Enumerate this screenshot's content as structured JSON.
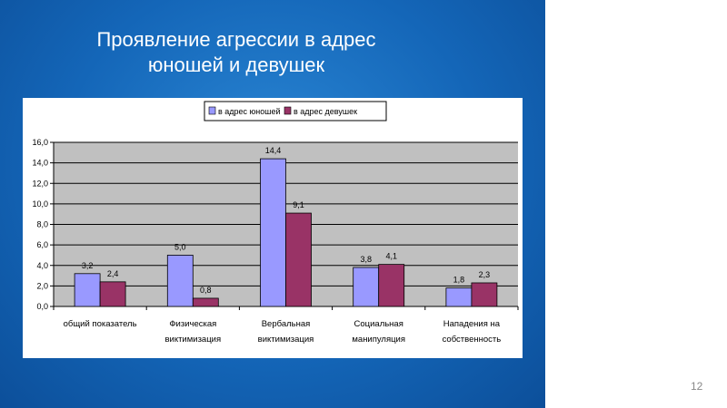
{
  "slide": {
    "title_line1": "Проявление агрессии в адрес",
    "title_line2": "юношей и девушек",
    "page_number": "12"
  },
  "chart_data": {
    "type": "bar",
    "categories": [
      [
        "общий показатель"
      ],
      [
        "Физическая",
        "виктимизация"
      ],
      [
        "Вербальная",
        "виктимизация"
      ],
      [
        "Социальная",
        "манипуляция"
      ],
      [
        "Нападения на",
        "собственность"
      ]
    ],
    "series": [
      {
        "name": "в адрес юношей",
        "color": "#9999ff",
        "values": [
          3.2,
          5.0,
          14.4,
          3.8,
          1.8
        ],
        "labels": [
          "3,2",
          "5,0",
          "14,4",
          "3,8",
          "1,8"
        ]
      },
      {
        "name": "в адрес девушек",
        "color": "#993366",
        "values": [
          2.4,
          0.8,
          9.1,
          4.1,
          2.3
        ],
        "labels": [
          "2,4",
          "0,8",
          "9,1",
          "4,1",
          "2,3"
        ]
      }
    ],
    "ylim": [
      0,
      16
    ],
    "yticks": [
      "0,0",
      "2,0",
      "4,0",
      "6,0",
      "8,0",
      "10,0",
      "12,0",
      "14,0",
      "16,0"
    ],
    "grid": true,
    "legend": "top",
    "plot_bg": "#c0c0c0"
  }
}
